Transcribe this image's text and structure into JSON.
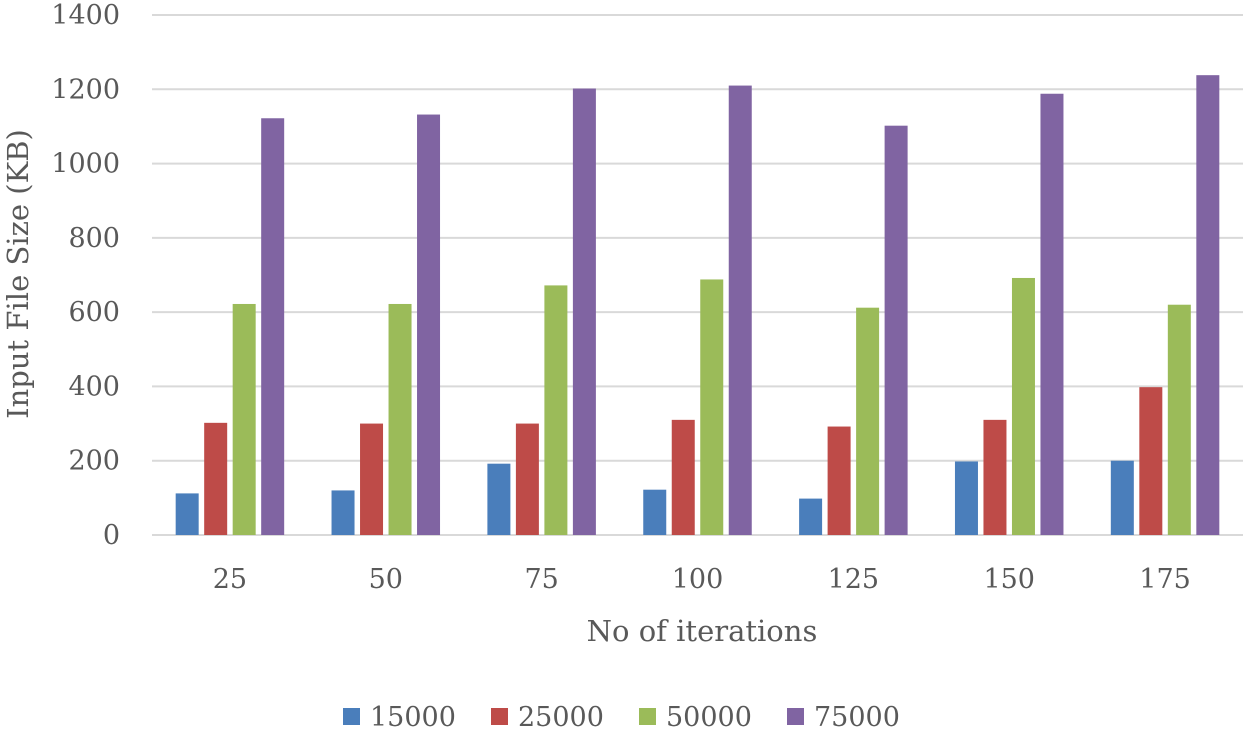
{
  "chart_data": {
    "type": "bar",
    "title": "",
    "xlabel": "No of  iterations",
    "ylabel": "Input File Size (KB)",
    "categories": [
      "25",
      "50",
      "75",
      "100",
      "125",
      "150",
      "175"
    ],
    "ylim": [
      0,
      1400
    ],
    "yticks": [
      0,
      200,
      400,
      600,
      800,
      1000,
      1200,
      1400
    ],
    "grid": true,
    "legend_position": "bottom",
    "series": [
      {
        "name": "15000",
        "color": "#4a7ebb",
        "values": [
          112,
          120,
          192,
          122,
          98,
          198,
          200
        ]
      },
      {
        "name": "25000",
        "color": "#be4b48",
        "values": [
          302,
          300,
          300,
          310,
          292,
          310,
          398
        ]
      },
      {
        "name": "50000",
        "color": "#9bbb59",
        "values": [
          622,
          622,
          672,
          688,
          612,
          692,
          620
        ]
      },
      {
        "name": "75000",
        "color": "#8064a2",
        "values": [
          1122,
          1132,
          1202,
          1210,
          1102,
          1188,
          1238
        ]
      }
    ]
  }
}
